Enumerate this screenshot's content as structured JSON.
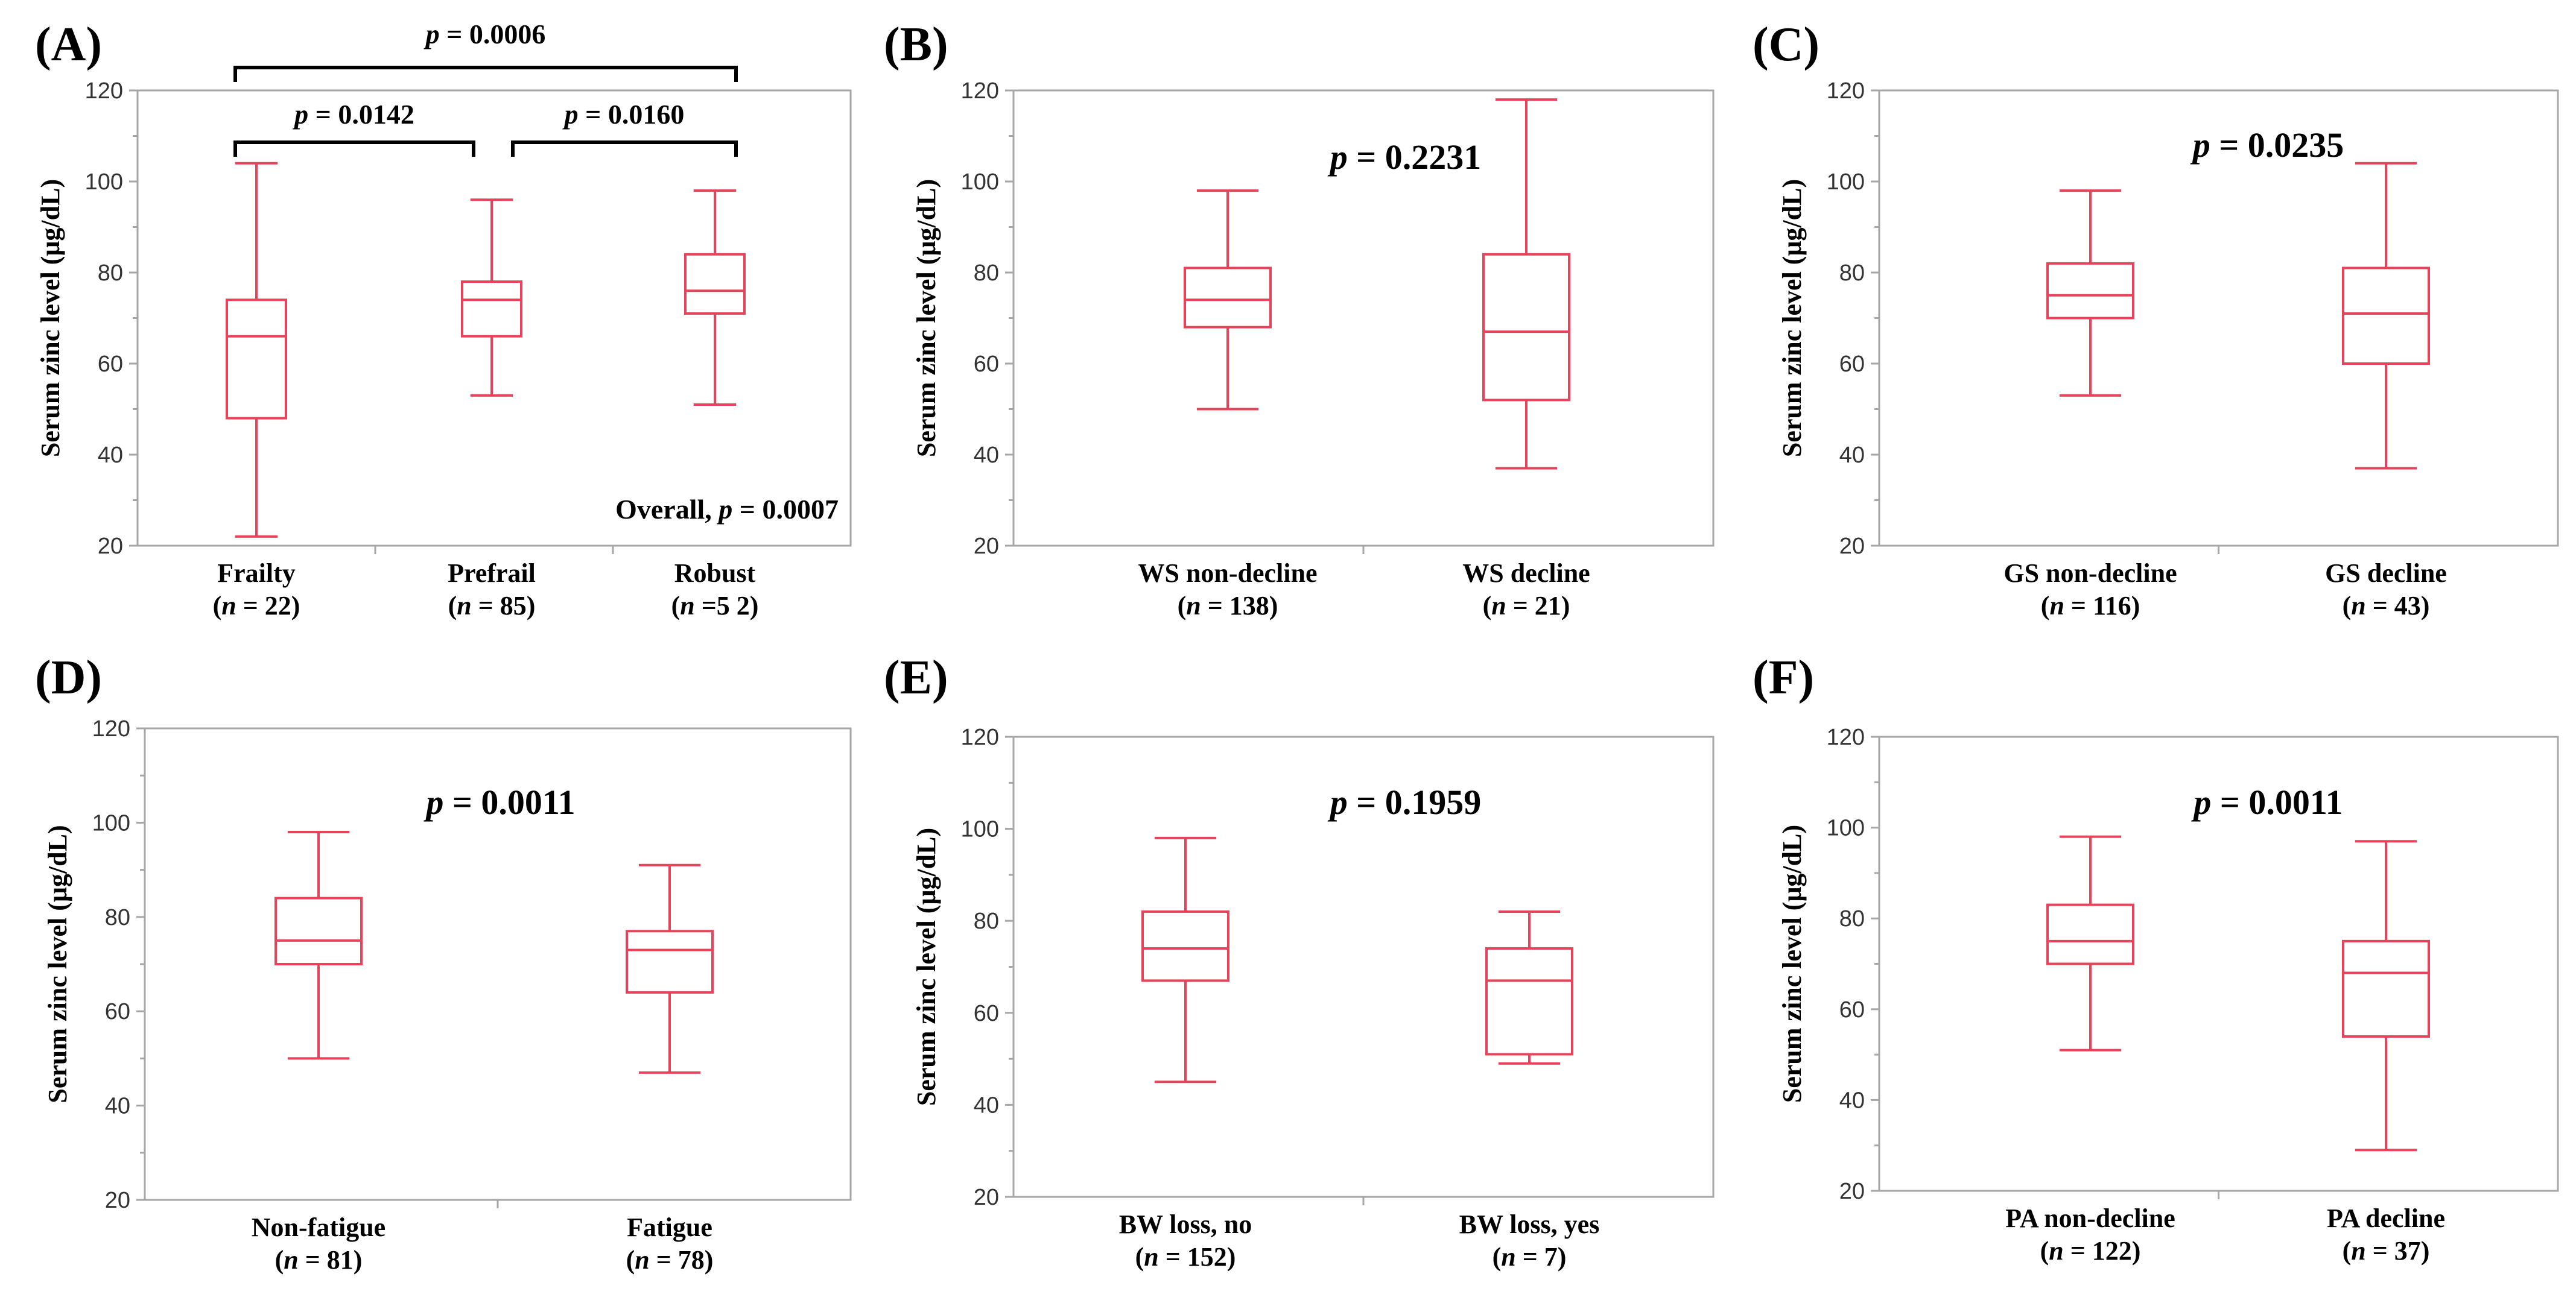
{
  "figure": {
    "colors": {
      "box": "#e8435a",
      "frame": "#a6a6a6",
      "text": "#000000"
    }
  },
  "chart_data": [
    {
      "type": "box",
      "panel": "(A)",
      "ylabel": "Serum zinc level (μg/dL)",
      "ylim": [
        20,
        120
      ],
      "yticks": [
        20,
        40,
        60,
        80,
        100,
        120
      ],
      "categories": [
        {
          "label": "Frailty",
          "n_label": "(n = 22)",
          "min": 22,
          "q1": 48,
          "median": 66,
          "q3": 74,
          "max": 104
        },
        {
          "label": "Prefrail",
          "n_label": "(n = 85)",
          "min": 53,
          "q1": 66,
          "median": 74,
          "q3": 78,
          "max": 96
        },
        {
          "label": "Robust",
          "n_label": "(n =5 2)",
          "min": 51,
          "q1": 71,
          "median": 76,
          "q3": 84,
          "max": 98
        }
      ],
      "annotations": {
        "overall": "Overall, p = 0.0007",
        "comparisons": [
          {
            "from": 0,
            "to": 2,
            "text": "p = 0.0006"
          },
          {
            "from": 0,
            "to": 1,
            "text": "p = 0.0142"
          },
          {
            "from": 1,
            "to": 2,
            "text": "p = 0.0160"
          }
        ]
      }
    },
    {
      "type": "box",
      "panel": "(B)",
      "ylabel": "Serum zinc level (μg/dL)",
      "ylim": [
        20,
        120
      ],
      "yticks": [
        20,
        40,
        60,
        80,
        100,
        120
      ],
      "categories": [
        {
          "label": "WS non-decline",
          "n_label": "(n = 138)",
          "min": 50,
          "q1": 68,
          "median": 74,
          "q3": 81,
          "max": 98
        },
        {
          "label": "WS decline",
          "n_label": "(n = 21)",
          "min": 37,
          "q1": 52,
          "median": 67,
          "q3": 84,
          "max": 118
        }
      ],
      "annotations": {
        "p_value": "p = 0.2231"
      }
    },
    {
      "type": "box",
      "panel": "(C)",
      "ylabel": "Serum zinc level (μg/dL)",
      "ylim": [
        20,
        120
      ],
      "yticks": [
        20,
        40,
        60,
        80,
        100,
        120
      ],
      "categories": [
        {
          "label": "GS non-decline",
          "n_label": "(n = 116)",
          "min": 53,
          "q1": 70,
          "median": 75,
          "q3": 82,
          "max": 98
        },
        {
          "label": "GS decline",
          "n_label": "(n = 43)",
          "min": 37,
          "q1": 60,
          "median": 71,
          "q3": 81,
          "max": 104
        }
      ],
      "annotations": {
        "p_value": "p = 0.0235"
      }
    },
    {
      "type": "box",
      "panel": "(D)",
      "ylabel": "Serum zinc level (μg/dL)",
      "ylim": [
        20,
        120
      ],
      "yticks": [
        20,
        40,
        60,
        80,
        100,
        120
      ],
      "categories": [
        {
          "label": "Non-fatigue",
          "n_label": "(n = 81)",
          "min": 50,
          "q1": 70,
          "median": 75,
          "q3": 84,
          "max": 98
        },
        {
          "label": "Fatigue",
          "n_label": "(n = 78)",
          "min": 47,
          "q1": 64,
          "median": 73,
          "q3": 77,
          "max": 91
        }
      ],
      "annotations": {
        "p_value": "p = 0.0011"
      }
    },
    {
      "type": "box",
      "panel": "(E)",
      "ylabel": "Serum zinc level (μg/dL)",
      "ylim": [
        20,
        120
      ],
      "yticks": [
        20,
        40,
        60,
        80,
        100,
        120
      ],
      "categories": [
        {
          "label": "BW loss, no",
          "n_label": "(n = 152)",
          "min": 45,
          "q1": 67,
          "median": 74,
          "q3": 82,
          "max": 98
        },
        {
          "label": "BW loss, yes",
          "n_label": "(n = 7)",
          "min": 49,
          "q1": 51,
          "median": 67,
          "q3": 74,
          "max": 82
        }
      ],
      "annotations": {
        "p_value": "p = 0.1959"
      }
    },
    {
      "type": "box",
      "panel": "(F)",
      "ylabel": "Serum zinc level (μg/dL)",
      "ylim": [
        20,
        120
      ],
      "yticks": [
        20,
        40,
        60,
        80,
        100,
        120
      ],
      "categories": [
        {
          "label": "PA non-decline",
          "n_label": "(n = 122)",
          "min": 51,
          "q1": 70,
          "median": 75,
          "q3": 83,
          "max": 98
        },
        {
          "label": "PA decline",
          "n_label": "(n = 37)",
          "min": 29,
          "q1": 54,
          "median": 68,
          "q3": 75,
          "max": 97
        }
      ],
      "annotations": {
        "p_value": "p = 0.0011"
      }
    }
  ]
}
